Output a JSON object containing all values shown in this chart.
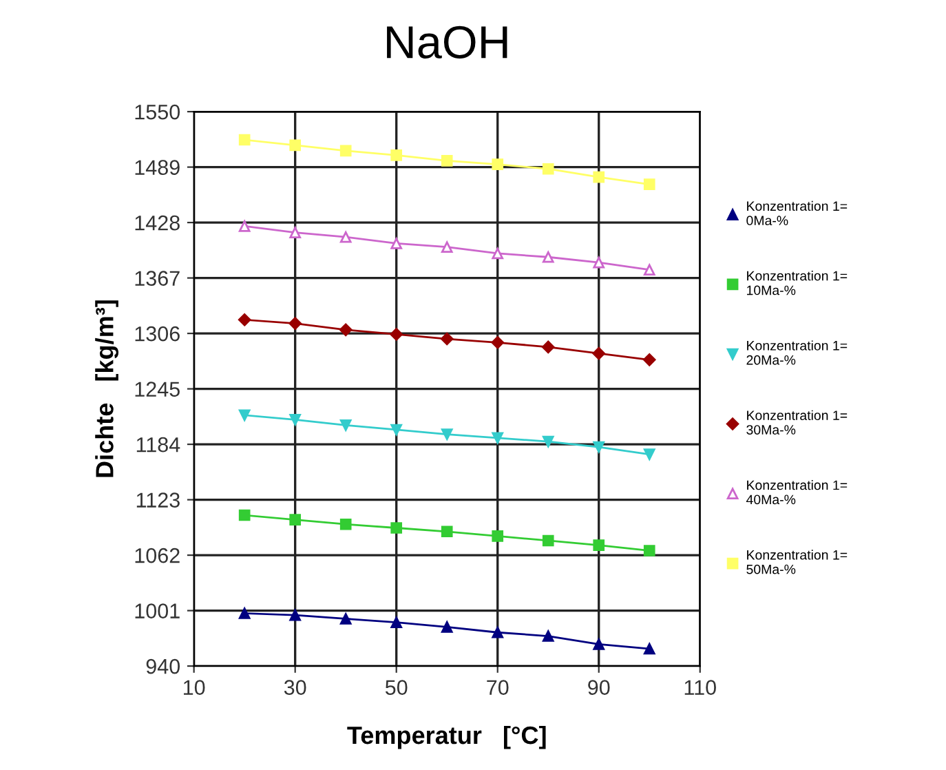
{
  "chart_data": {
    "type": "line",
    "title": "NaOH",
    "xlabel": "Temperatur   [°C]",
    "ylabel": "Dichte   [kg/m³]",
    "x": [
      20,
      30,
      40,
      50,
      60,
      70,
      80,
      90,
      100
    ],
    "series": [
      {
        "name": "Konzentration 1=\n0Ma-%",
        "color": "#000080",
        "marker": "triangle",
        "values": [
          998,
          996,
          992,
          988,
          983,
          977,
          973,
          964,
          959
        ]
      },
      {
        "name": "Konzentration 1=\n10Ma-%",
        "color": "#33cc33",
        "marker": "square",
        "values": [
          1106,
          1101,
          1096,
          1092,
          1088,
          1083,
          1078,
          1073,
          1067
        ]
      },
      {
        "name": "Konzentration 1=\n20Ma-%",
        "color": "#33cccc",
        "marker": "triangle_down",
        "values": [
          1216,
          1211,
          1205,
          1200,
          1195,
          1191,
          1187,
          1181,
          1173
        ]
      },
      {
        "name": "Konzentration 1=\n30Ma-%",
        "color": "#990000",
        "marker": "diamond",
        "values": [
          1321,
          1317,
          1310,
          1305,
          1300,
          1296,
          1291,
          1284,
          1277
        ]
      },
      {
        "name": "Konzentration 1=\n40Ma-%",
        "color": "#cc66cc",
        "marker": "triangle_open",
        "values": [
          1424,
          1417,
          1412,
          1405,
          1401,
          1394,
          1390,
          1384,
          1376
        ]
      },
      {
        "name": "Konzentration 1=\n50Ma-%",
        "color": "#ffff66",
        "marker": "square",
        "values": [
          1519,
          1513,
          1507,
          1502,
          1496,
          1492,
          1487,
          1478,
          1470
        ]
      }
    ],
    "xlim": [
      10,
      110
    ],
    "xticks": [
      10,
      30,
      50,
      70,
      90,
      110
    ],
    "ylim": [
      940,
      1550
    ],
    "yticks": [
      940,
      1001,
      1062,
      1123,
      1184,
      1245,
      1306,
      1367,
      1428,
      1489,
      1550
    ],
    "grid": true,
    "legend": "right",
    "line_style": "solid"
  }
}
